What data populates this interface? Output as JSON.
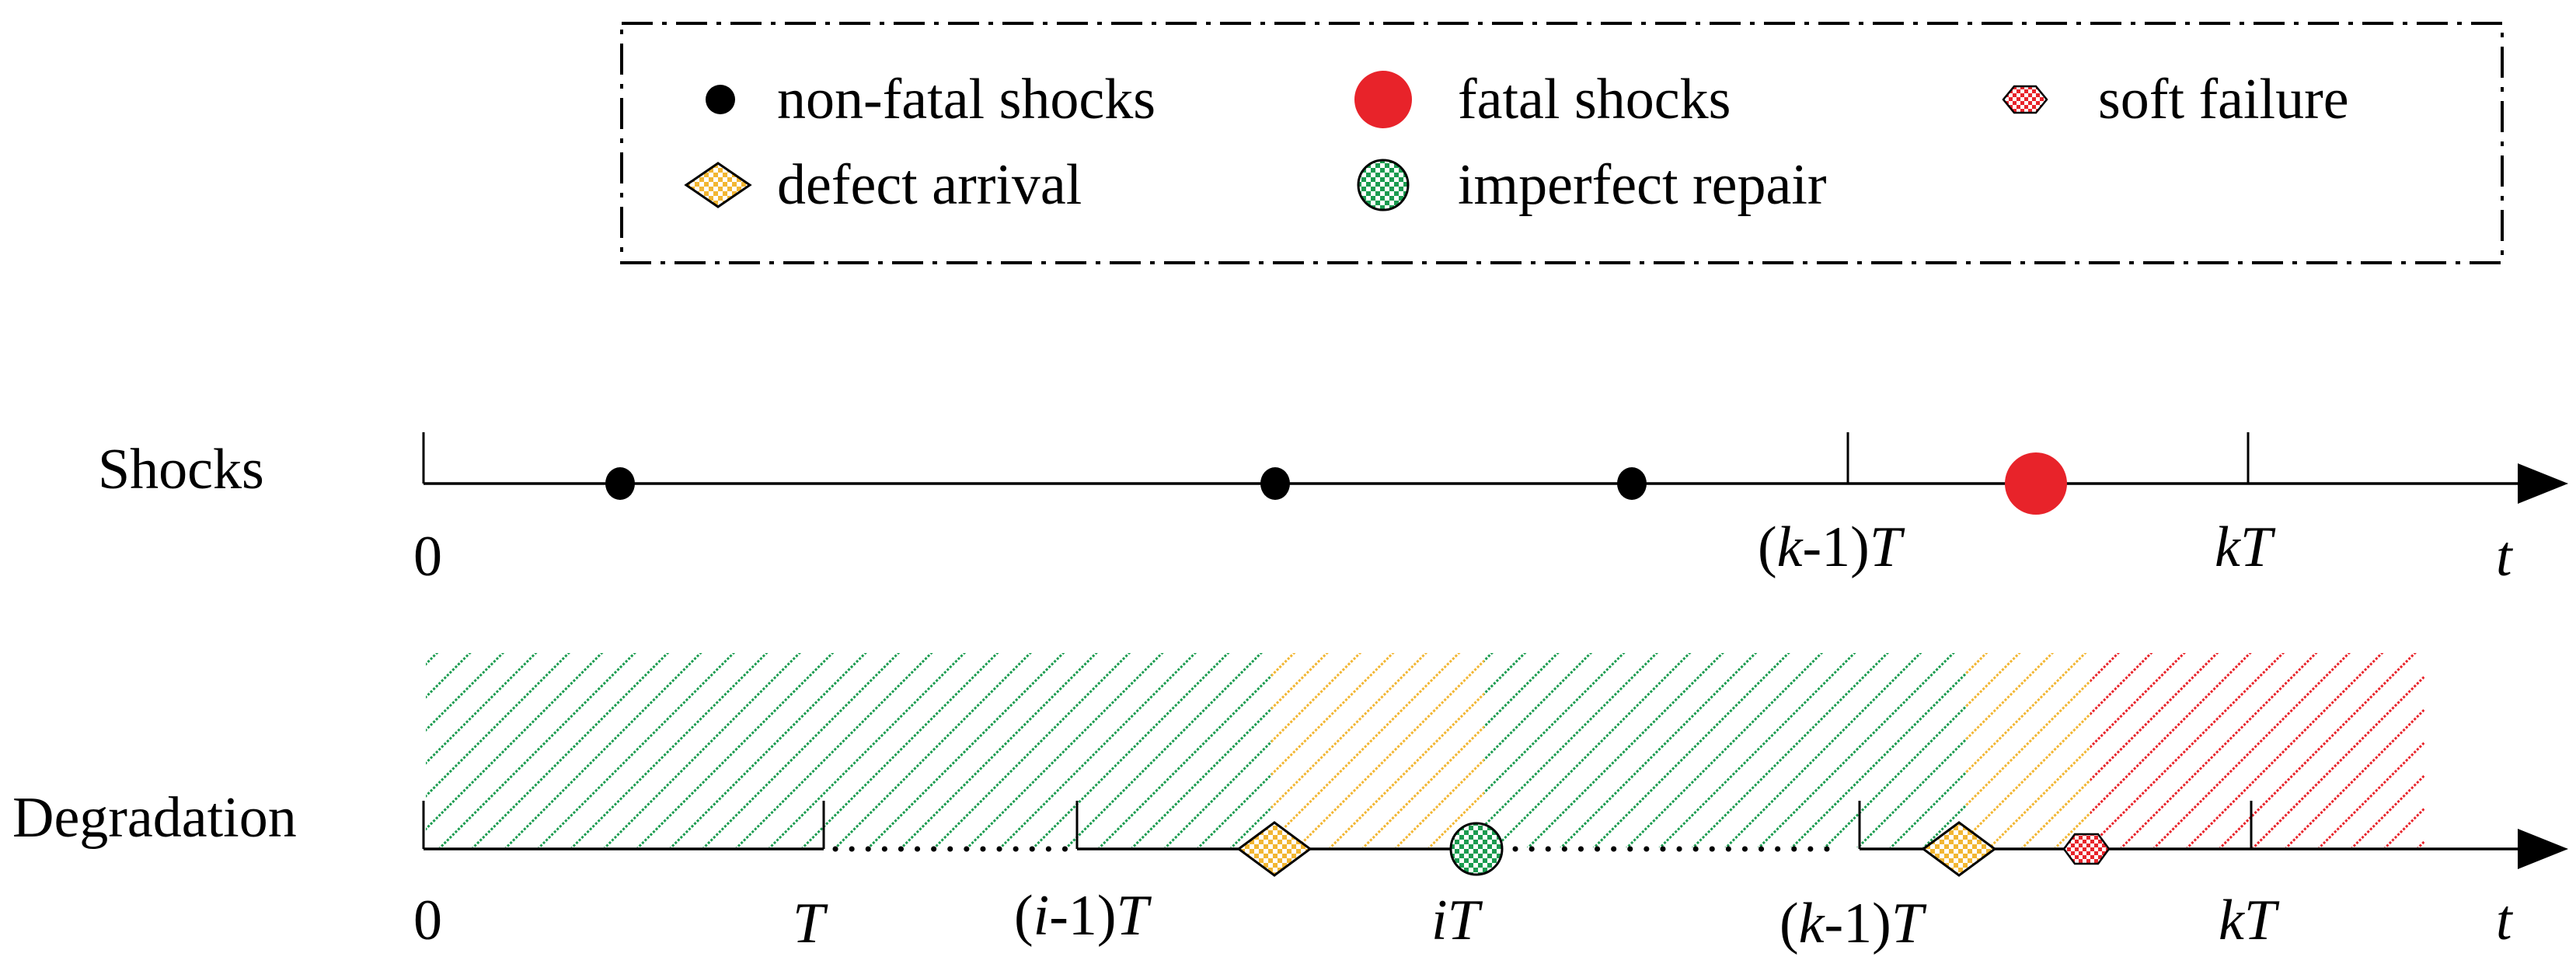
{
  "legend": {
    "items": [
      {
        "key": "non_fatal",
        "label": "non-fatal shocks",
        "icon": "black-dot-icon"
      },
      {
        "key": "fatal",
        "label": "fatal shocks",
        "icon": "red-dot-icon"
      },
      {
        "key": "soft",
        "label": "soft failure",
        "icon": "red-checkered-hexagon-icon"
      },
      {
        "key": "defect",
        "label": "defect arrival",
        "icon": "yellow-checkered-diamond-icon"
      },
      {
        "key": "repair",
        "label": "imperfect repair",
        "icon": "green-checkered-circle-icon"
      }
    ]
  },
  "shocks": {
    "row_label": "Shocks",
    "origin_label": "0",
    "k1_paren_open": "(",
    "k1_var": "k",
    "k1_rest": "-1)",
    "k1_T": "T",
    "kT_k": "k",
    "kT_T": "T",
    "t_label": "t"
  },
  "degradation": {
    "row_label": "Degradation",
    "origin_label": "0",
    "T_label": "T",
    "i1_paren_open": "(",
    "i1_var": "i",
    "i1_rest": "-1)",
    "i1_T": "T",
    "iT_i": "i",
    "iT_T": "T",
    "k1_paren_open": "(",
    "k1_var": "k",
    "k1_rest": "-1)",
    "k1_T": "T",
    "kT_k": "k",
    "kT_T": "T",
    "t_label": "t"
  },
  "colors": {
    "green": "#1a9b4f",
    "yellow": "#f2b632",
    "red": "#e8232a",
    "black": "#000000"
  }
}
